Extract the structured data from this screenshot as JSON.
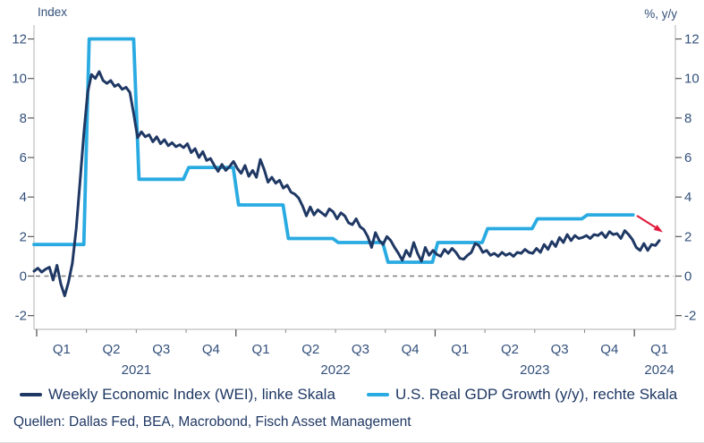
{
  "axes": {
    "left_title": "Index",
    "right_title": "%, y/y"
  },
  "legend": {
    "wei": "Weekly Economic Index (WEI), linke Skala",
    "gdp": "U.S. Real GDP Growth (y/y), rechte Skala"
  },
  "source": "Quellen: Dallas Fed, BEA, Macrobond, Fisch Asset Management",
  "colors": {
    "wei_line": "#1f3864",
    "gdp_line": "#29abe2",
    "arrow": "#e11a3c",
    "axis_line": "#bfbfbf",
    "tick": "#595959",
    "minor_tick": "#8a8a8a",
    "zero_line": "#7f7f7f",
    "axis_text": "#33507b"
  },
  "chart_data": {
    "type": "line",
    "title": "",
    "left_axis": {
      "title": "Index",
      "ticks": [
        12,
        10,
        8,
        6,
        4,
        2,
        0,
        -2
      ],
      "range": [
        -2.8,
        12.8
      ]
    },
    "right_axis": {
      "title": "%, y/y",
      "ticks": [
        12,
        10,
        8,
        6,
        4,
        2,
        0,
        -2
      ],
      "range": [
        -2.8,
        12.8
      ]
    },
    "x_axis": {
      "quarter_labels": [
        "Q1",
        "Q2",
        "Q3",
        "Q4",
        "Q1",
        "Q2",
        "Q3",
        "Q4",
        "Q1",
        "Q2",
        "Q3",
        "Q4",
        "Q1"
      ],
      "year_labels": [
        "2021",
        "2022",
        "2023",
        "2024"
      ],
      "grid": false
    },
    "zero_line_dashed": true,
    "series": [
      {
        "name": "Weekly Economic Index (WEI), linke Skala",
        "axis": "left",
        "sampling": "weekly",
        "color": "#1f3864",
        "values": [
          0.25,
          0.4,
          0.2,
          0.35,
          0.45,
          -0.2,
          0.55,
          -0.4,
          -1.0,
          -0.3,
          0.65,
          2.4,
          4.8,
          7.2,
          9.3,
          10.2,
          10.0,
          10.35,
          9.9,
          9.75,
          9.9,
          9.6,
          9.7,
          9.45,
          9.55,
          9.3,
          8.2,
          7.0,
          7.3,
          7.05,
          7.15,
          6.8,
          7.05,
          6.7,
          6.9,
          6.6,
          6.75,
          6.55,
          6.65,
          6.5,
          6.7,
          6.25,
          6.45,
          6.0,
          6.3,
          5.85,
          5.95,
          5.6,
          5.3,
          5.65,
          5.35,
          5.55,
          5.8,
          5.45,
          5.2,
          5.6,
          5.05,
          5.35,
          5.0,
          5.9,
          5.4,
          4.75,
          5.0,
          4.7,
          4.85,
          4.45,
          4.6,
          4.25,
          4.15,
          3.95,
          3.55,
          3.05,
          3.5,
          3.1,
          3.35,
          3.2,
          3.05,
          3.4,
          3.25,
          2.9,
          3.2,
          3.05,
          2.7,
          2.6,
          2.9,
          2.5,
          2.35,
          2.0,
          1.45,
          2.2,
          1.8,
          1.6,
          2.0,
          1.8,
          1.45,
          1.15,
          0.8,
          1.3,
          1.0,
          1.7,
          1.15,
          0.75,
          1.45,
          1.05,
          1.3,
          1.1,
          1.0,
          1.35,
          1.15,
          1.4,
          1.2,
          0.9,
          0.85,
          1.05,
          1.2,
          1.65,
          1.55,
          1.2,
          1.3,
          1.05,
          1.15,
          1.0,
          1.2,
          1.05,
          1.15,
          1.0,
          1.2,
          1.15,
          1.35,
          1.2,
          1.15,
          1.4,
          1.2,
          1.6,
          1.35,
          1.75,
          1.5,
          1.95,
          1.7,
          2.1,
          1.8,
          2.05,
          1.9,
          1.95,
          2.05,
          1.9,
          2.1,
          2.05,
          2.2,
          1.95,
          2.25,
          2.1,
          2.15,
          1.9,
          2.3,
          2.1,
          1.85,
          1.45,
          1.3,
          1.65,
          1.3,
          1.6,
          1.55,
          1.8
        ]
      },
      {
        "name": "U.S. Real GDP Growth (y/y), rechte Skala",
        "axis": "right",
        "sampling": "quarterly_step",
        "color": "#29abe2",
        "quarters": [
          "2021Q1",
          "2021Q2",
          "2021Q3",
          "2021Q4",
          "2022Q1",
          "2022Q2",
          "2022Q3",
          "2022Q4",
          "2023Q1",
          "2023Q2",
          "2023Q3",
          "2023Q4"
        ],
        "values": [
          1.6,
          12.0,
          4.9,
          5.5,
          3.6,
          1.9,
          1.7,
          0.7,
          1.7,
          2.4,
          2.9,
          3.1
        ]
      }
    ],
    "annotations": [
      {
        "type": "arrow-down-right",
        "color": "#e11a3c",
        "from_value": 3.1,
        "to_value": 2.3,
        "position": "end-of-gdp-line"
      }
    ]
  }
}
